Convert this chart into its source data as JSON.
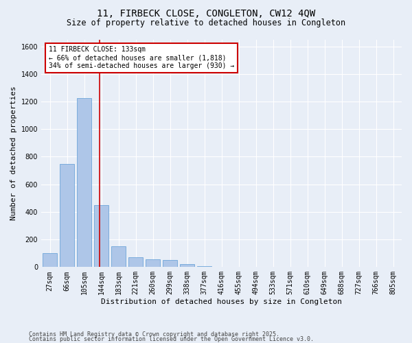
{
  "title_line1": "11, FIRBECK CLOSE, CONGLETON, CW12 4QW",
  "title_line2": "Size of property relative to detached houses in Congleton",
  "xlabel": "Distribution of detached houses by size in Congleton",
  "ylabel": "Number of detached properties",
  "categories": [
    "27sqm",
    "66sqm",
    "105sqm",
    "144sqm",
    "183sqm",
    "221sqm",
    "260sqm",
    "299sqm",
    "338sqm",
    "377sqm",
    "416sqm",
    "455sqm",
    "494sqm",
    "533sqm",
    "571sqm",
    "610sqm",
    "649sqm",
    "688sqm",
    "727sqm",
    "766sqm",
    "805sqm"
  ],
  "values": [
    100,
    750,
    1225,
    450,
    150,
    70,
    55,
    50,
    20,
    5,
    0,
    0,
    0,
    0,
    0,
    0,
    0,
    0,
    0,
    0,
    0
  ],
  "bar_color": "#aec6e8",
  "bar_edge_color": "#5b9bd5",
  "vline_color": "#cc0000",
  "annotation_text": "11 FIRBECK CLOSE: 133sqm\n← 66% of detached houses are smaller (1,818)\n34% of semi-detached houses are larger (930) →",
  "annotation_box_color": "#ffffff",
  "annotation_box_edge_color": "#cc0000",
  "ylim": [
    0,
    1650
  ],
  "yticks": [
    0,
    200,
    400,
    600,
    800,
    1000,
    1200,
    1400,
    1600
  ],
  "bg_color": "#e8eef7",
  "plot_bg_color": "#e8eef7",
  "footer_line1": "Contains HM Land Registry data © Crown copyright and database right 2025.",
  "footer_line2": "Contains public sector information licensed under the Open Government Licence v3.0.",
  "title_fontsize": 10,
  "subtitle_fontsize": 8.5,
  "axis_label_fontsize": 8,
  "tick_fontsize": 7,
  "annotation_fontsize": 7,
  "footer_fontsize": 6
}
